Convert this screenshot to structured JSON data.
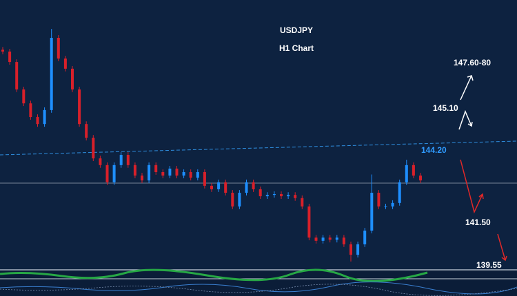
{
  "header": {
    "symbol": "USDJPY",
    "timeframe": "H1 Chart"
  },
  "chart_data": {
    "type": "candlestick",
    "ylim": [
      139.8,
      149.8
    ],
    "up_color": "#1e8fff",
    "down_color": "#d8202a",
    "open": [
      147.95,
      147.88,
      147.49,
      146.47,
      145.95,
      145.44,
      145.18,
      145.7,
      148.39,
      147.62,
      147.24,
      146.47,
      145.18,
      144.67,
      143.9,
      143.65,
      143.01,
      143.65,
      144.03,
      143.65,
      143.26,
      143.08,
      143.65,
      143.39,
      143.26,
      143.52,
      143.26,
      143.39,
      143.18,
      143.39,
      142.88,
      142.75,
      143.01,
      142.62,
      142.11,
      142.62,
      143.01,
      142.75,
      142.49,
      142.54,
      142.57,
      142.49,
      142.54,
      142.42,
      142.11,
      140.95,
      140.83,
      140.95,
      140.87,
      140.95,
      140.7,
      140.31,
      140.7,
      141.21,
      142.62,
      142.11,
      142.11,
      142.24,
      143.01,
      143.65,
      143.26
    ],
    "high": [
      148.05,
      147.98,
      147.59,
      146.57,
      146.05,
      145.54,
      145.8,
      148.72,
      148.49,
      147.72,
      147.34,
      146.57,
      145.28,
      144.77,
      144.0,
      143.75,
      143.75,
      144.13,
      144.13,
      143.75,
      143.36,
      143.75,
      143.75,
      143.49,
      143.62,
      143.62,
      143.49,
      143.49,
      143.49,
      143.49,
      142.98,
      143.11,
      143.11,
      142.72,
      142.72,
      143.11,
      143.11,
      142.85,
      142.64,
      142.67,
      142.67,
      142.64,
      142.64,
      142.52,
      142.21,
      141.05,
      141.05,
      141.05,
      141.05,
      141.05,
      140.8,
      140.8,
      141.31,
      143.3,
      142.72,
      142.21,
      142.34,
      143.11,
      143.85,
      143.75,
      143.36
    ],
    "low": [
      147.78,
      147.39,
      146.37,
      145.85,
      145.34,
      145.08,
      145.08,
      145.6,
      147.52,
      147.14,
      146.37,
      145.08,
      144.57,
      143.8,
      143.55,
      142.91,
      142.91,
      143.55,
      143.55,
      143.16,
      142.98,
      142.98,
      143.29,
      143.16,
      143.16,
      143.16,
      143.16,
      143.08,
      143.08,
      142.78,
      142.65,
      142.65,
      142.52,
      142.01,
      142.01,
      142.52,
      142.65,
      142.39,
      142.39,
      142.44,
      142.39,
      142.39,
      142.32,
      142.01,
      140.85,
      140.73,
      140.73,
      140.77,
      140.77,
      140.6,
      140.06,
      140.21,
      140.6,
      141.11,
      142.01,
      142.01,
      142.01,
      142.14,
      142.91,
      143.16,
      142.98
    ],
    "close": [
      147.88,
      147.49,
      146.47,
      145.95,
      145.44,
      145.18,
      145.7,
      148.39,
      147.62,
      147.24,
      146.47,
      145.18,
      144.67,
      143.9,
      143.65,
      143.01,
      143.65,
      144.03,
      143.65,
      143.26,
      143.08,
      143.65,
      143.39,
      143.26,
      143.52,
      143.26,
      143.39,
      143.18,
      143.39,
      142.88,
      142.75,
      143.01,
      142.62,
      142.11,
      142.62,
      143.01,
      142.75,
      142.49,
      142.54,
      142.57,
      142.49,
      142.54,
      142.42,
      142.11,
      140.95,
      140.83,
      140.95,
      140.87,
      140.95,
      140.7,
      140.31,
      140.7,
      141.21,
      142.62,
      142.11,
      142.11,
      142.24,
      143.01,
      143.65,
      143.26,
      143.08
    ],
    "annotations": [
      "147.60-80",
      "145.10",
      "144.20",
      "141.50",
      "139.55"
    ]
  }
}
